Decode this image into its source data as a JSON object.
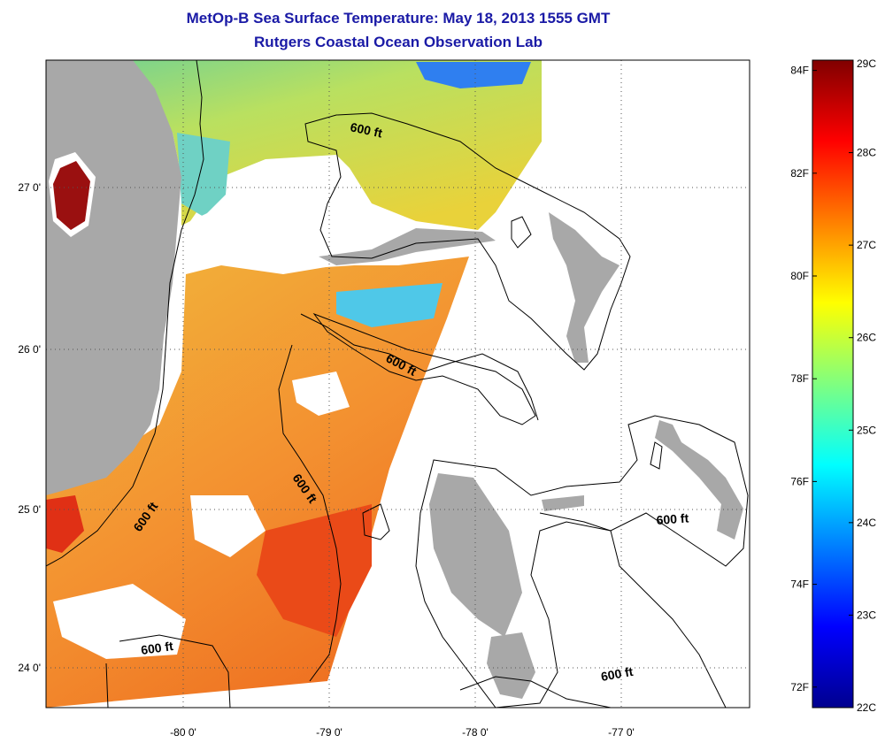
{
  "title": "MetOp-B Sea Surface Temperature:  May 18, 2013 1555 GMT",
  "subtitle": "Rutgers Coastal Ocean Observation Lab",
  "map": {
    "lon_ticks": [
      "-80 0'",
      "-79 0'",
      "-78 0'",
      "-77 0'"
    ],
    "lat_ticks": [
      "27 0'",
      "26 0'",
      "25 0'",
      "24 0'"
    ],
    "contour_label": "600 ft",
    "contour_labels": [
      "600 ft",
      "600 ft",
      "600 ft",
      "600 ft",
      "600 ft",
      "600 ft",
      "600 ft"
    ],
    "colors": {
      "land": "#a8a8a8",
      "coast_line": "#000000",
      "no_data": "#ffffff"
    }
  },
  "colorbar": {
    "celsius": [
      "29C",
      "28C",
      "27C",
      "26C",
      "25C",
      "24C",
      "23C",
      "22C"
    ],
    "fahrenheit": [
      "84F",
      "82F",
      "80F",
      "78F",
      "76F",
      "74F",
      "72F"
    ],
    "range_c": [
      22,
      29
    ],
    "colormap": "jet"
  }
}
